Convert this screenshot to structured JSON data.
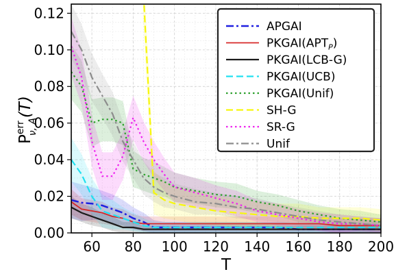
{
  "chart_data": {
    "type": "line",
    "xlabel": "T",
    "ylabel": "P",
    "ylabel_superscript": "err",
    "ylabel_subscript": "ν, A",
    "ylabel_argument": "(T)",
    "xlim": [
      50,
      200
    ],
    "ylim": [
      0.0,
      0.125
    ],
    "xticks": [
      "60",
      "80",
      "100",
      "120",
      "140",
      "160",
      "180",
      "200"
    ],
    "yticks": [
      "0.00",
      "0.02",
      "0.04",
      "0.06",
      "0.08",
      "0.10",
      "0.12"
    ],
    "grid": true,
    "legend_position": "top-right",
    "x": [
      50,
      55,
      60,
      65,
      70,
      75,
      80,
      85,
      90,
      95,
      100,
      110,
      120,
      130,
      140,
      150,
      160,
      170,
      180,
      190,
      200
    ],
    "series": [
      {
        "name": "APGAI",
        "color": "#1f1fe0",
        "style": "dashdot",
        "width": 2.5,
        "values": [
          0.018,
          0.0165,
          0.016,
          0.015,
          0.013,
          0.011,
          0.008,
          0.006,
          0.003,
          0.003,
          0.003,
          0.003,
          0.003,
          0.003,
          0.003,
          0.003,
          0.002,
          0.002,
          0.002,
          0.002,
          0.002
        ],
        "band": [
          0.01,
          0.01,
          0.009,
          0.008,
          0.008,
          0.007,
          0.006,
          0.005,
          0.004,
          0.003,
          0.003,
          0.003,
          0.003,
          0.003,
          0.003,
          0.003,
          0.003,
          0.003,
          0.002,
          0.002,
          0.002
        ]
      },
      {
        "name": "PKGAI(APT_P)",
        "color": "#d62728",
        "style": "solid",
        "width": 1.8,
        "values": [
          0.017,
          0.013,
          0.012,
          0.011,
          0.009,
          0.008,
          0.006,
          0.005,
          0.005,
          0.005,
          0.005,
          0.005,
          0.005,
          0.005,
          0.005,
          0.005,
          0.005,
          0.005,
          0.004,
          0.004,
          0.004
        ],
        "band": [
          0.007,
          0.006,
          0.006,
          0.006,
          0.005,
          0.005,
          0.004,
          0.004,
          0.004,
          0.004,
          0.004,
          0.004,
          0.004,
          0.004,
          0.004,
          0.004,
          0.004,
          0.004,
          0.004,
          0.004,
          0.004
        ]
      },
      {
        "name": "PKGAI(LCB-G)",
        "color": "#1a1a1a",
        "style": "solid",
        "width": 2.2,
        "values": [
          0.014,
          0.011,
          0.009,
          0.007,
          0.005,
          0.003,
          0.003,
          0.002,
          0.002,
          0.002,
          0.002,
          0.002,
          0.002,
          0.002,
          0.002,
          0.002,
          0.002,
          0.002,
          0.002,
          0.002,
          0.002
        ],
        "band": [
          0.006,
          0.005,
          0.005,
          0.004,
          0.004,
          0.003,
          0.003,
          0.002,
          0.002,
          0.002,
          0.002,
          0.002,
          0.002,
          0.002,
          0.002,
          0.002,
          0.002,
          0.002,
          0.002,
          0.002,
          0.002
        ]
      },
      {
        "name": "PKGAI(UCB)",
        "color": "#22e0f0",
        "style": "dashed",
        "width": 2.2,
        "values": [
          0.04,
          0.032,
          0.02,
          0.012,
          0.01,
          0.008,
          0.006,
          0.004,
          0.003,
          0.003,
          0.003,
          0.003,
          0.003,
          0.003,
          0.003,
          0.003,
          0.003,
          0.003,
          0.003,
          0.003,
          0.003
        ],
        "band": [
          0.012,
          0.011,
          0.01,
          0.009,
          0.008,
          0.006,
          0.005,
          0.004,
          0.003,
          0.003,
          0.003,
          0.003,
          0.003,
          0.003,
          0.003,
          0.003,
          0.003,
          0.003,
          0.003,
          0.003,
          0.003
        ]
      },
      {
        "name": "PKGAI(Unif)",
        "color": "#2ca02c",
        "style": "dotted",
        "width": 2.2,
        "values": [
          0.088,
          0.08,
          0.06,
          0.062,
          0.062,
          0.06,
          0.035,
          0.032,
          0.03,
          0.028,
          0.025,
          0.023,
          0.021,
          0.02,
          0.017,
          0.015,
          0.012,
          0.01,
          0.008,
          0.007,
          0.006
        ],
        "band": [
          0.015,
          0.014,
          0.013,
          0.012,
          0.012,
          0.012,
          0.01,
          0.009,
          0.009,
          0.008,
          0.008,
          0.007,
          0.007,
          0.007,
          0.006,
          0.006,
          0.006,
          0.005,
          0.005,
          0.005,
          0.004
        ]
      },
      {
        "name": "SH-G",
        "color": "#f7f70c",
        "style": "dashed",
        "width": 2.2,
        "values": [
          null,
          null,
          null,
          null,
          null,
          null,
          null,
          0.13,
          0.022,
          0.018,
          0.016,
          0.014,
          0.012,
          0.011,
          0.01,
          0.009,
          0.009,
          0.008,
          0.008,
          0.008,
          0.007
        ],
        "band": [
          null,
          null,
          null,
          null,
          null,
          null,
          null,
          0.015,
          0.012,
          0.01,
          0.009,
          0.009,
          0.008,
          0.008,
          0.007,
          0.007,
          0.007,
          0.006,
          0.006,
          0.006,
          0.006
        ]
      },
      {
        "name": "SR-G",
        "color": "#ee22ee",
        "style": "dotted",
        "width": 2.2,
        "values": [
          0.102,
          0.085,
          0.05,
          0.031,
          0.031,
          0.042,
          0.063,
          0.05,
          0.04,
          0.032,
          0.025,
          0.022,
          0.019,
          0.016,
          0.012,
          0.01,
          0.008,
          0.006,
          0.005,
          0.005,
          0.004
        ],
        "band": [
          0.016,
          0.015,
          0.014,
          0.013,
          0.013,
          0.013,
          0.012,
          0.011,
          0.01,
          0.009,
          0.008,
          0.008,
          0.007,
          0.007,
          0.006,
          0.006,
          0.005,
          0.005,
          0.005,
          0.004,
          0.004
        ]
      },
      {
        "name": "Unif",
        "color": "#8c8c8c",
        "style": "dashdot",
        "width": 2.2,
        "values": [
          0.11,
          0.1,
          0.085,
          0.075,
          0.065,
          0.05,
          0.04,
          0.03,
          0.025,
          0.022,
          0.02,
          0.017,
          0.016,
          0.014,
          0.013,
          0.011,
          0.009,
          0.007,
          0.006,
          0.005,
          0.004
        ],
        "band": [
          0.015,
          0.014,
          0.013,
          0.012,
          0.012,
          0.011,
          0.01,
          0.009,
          0.008,
          0.008,
          0.007,
          0.007,
          0.006,
          0.006,
          0.006,
          0.005,
          0.005,
          0.005,
          0.004,
          0.004,
          0.004
        ]
      }
    ]
  }
}
